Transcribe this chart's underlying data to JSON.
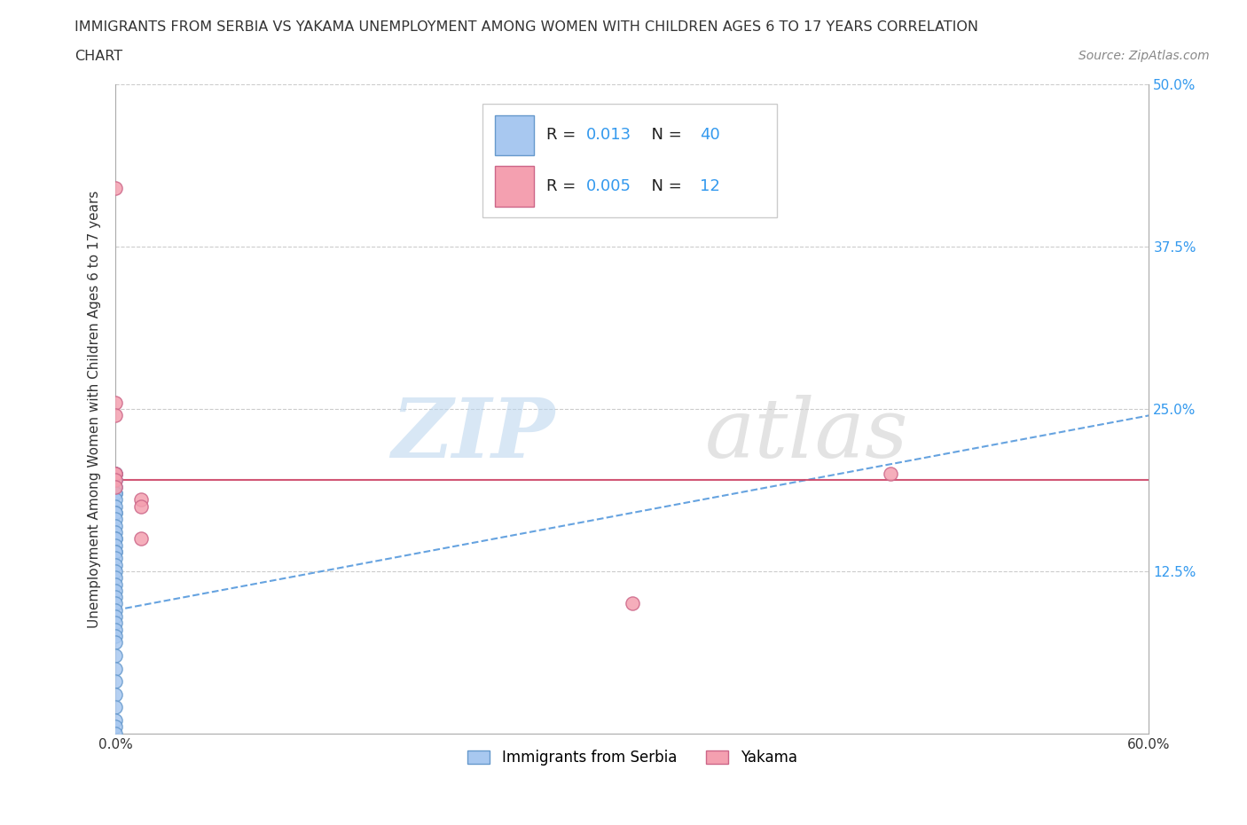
{
  "title_line1": "IMMIGRANTS FROM SERBIA VS YAKAMA UNEMPLOYMENT AMONG WOMEN WITH CHILDREN AGES 6 TO 17 YEARS CORRELATION",
  "title_line2": "CHART",
  "source": "Source: ZipAtlas.com",
  "ylabel": "Unemployment Among Women with Children Ages 6 to 17 years",
  "xlim": [
    0.0,
    0.6
  ],
  "ylim": [
    0.0,
    0.5
  ],
  "serbia_color": "#a8c8f0",
  "yakama_color": "#f4a0b0",
  "serbia_edge": "#6699cc",
  "yakama_edge": "#cc6688",
  "trendline_serbia_color": "#5599dd",
  "trendline_yakama_color": "#cc4466",
  "R_serbia": "0.013",
  "N_serbia": "40",
  "R_yakama": "0.005",
  "N_yakama": "12",
  "grid_color": "#cccccc",
  "serbia_x": [
    0.0,
    0.0,
    0.0,
    0.0,
    0.0,
    0.0,
    0.0,
    0.0,
    0.0,
    0.0,
    0.0,
    0.0,
    0.0,
    0.0,
    0.0,
    0.0,
    0.0,
    0.0,
    0.0,
    0.0,
    0.0,
    0.0,
    0.0,
    0.0,
    0.0,
    0.0,
    0.0,
    0.0,
    0.0,
    0.0,
    0.0,
    0.0,
    0.0,
    0.0,
    0.0,
    0.0,
    0.0,
    0.0,
    0.0,
    0.0
  ],
  "serbia_y": [
    0.2,
    0.2,
    0.195,
    0.19,
    0.185,
    0.185,
    0.18,
    0.175,
    0.17,
    0.17,
    0.165,
    0.16,
    0.155,
    0.15,
    0.15,
    0.145,
    0.14,
    0.14,
    0.135,
    0.13,
    0.125,
    0.12,
    0.115,
    0.11,
    0.105,
    0.1,
    0.095,
    0.09,
    0.085,
    0.08,
    0.075,
    0.07,
    0.06,
    0.05,
    0.04,
    0.03,
    0.02,
    0.01,
    0.005,
    0.0
  ],
  "yakama_x": [
    0.0,
    0.0,
    0.0,
    0.0,
    0.0,
    0.015,
    0.015,
    0.015,
    0.3,
    0.45,
    0.0,
    0.0
  ],
  "yakama_y": [
    0.42,
    0.255,
    0.245,
    0.2,
    0.2,
    0.18,
    0.175,
    0.15,
    0.1,
    0.2,
    0.195,
    0.19
  ],
  "serbia_trend_x0": 0.0,
  "serbia_trend_y0": 0.095,
  "serbia_trend_x1": 0.6,
  "serbia_trend_y1": 0.245,
  "yakama_trend_y": 0.195
}
